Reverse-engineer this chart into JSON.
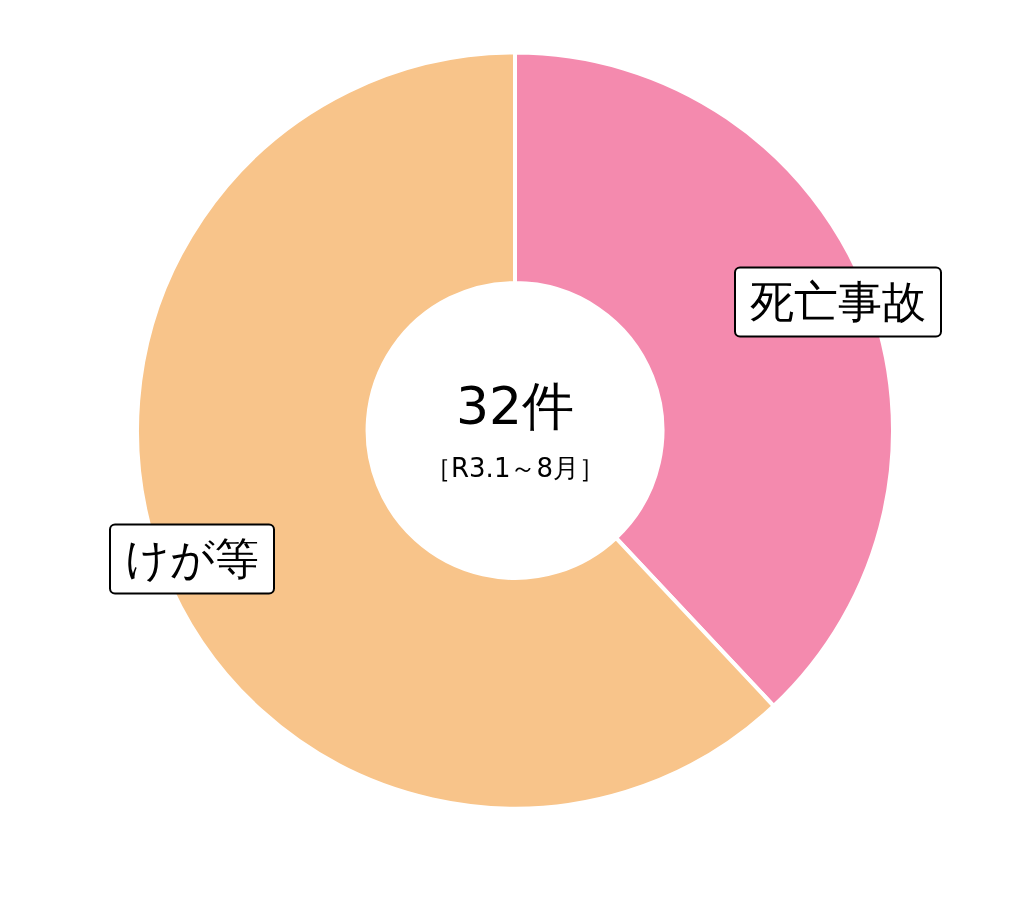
{
  "chart_data": {
    "type": "donut",
    "categories": [
      "死亡事故",
      "けが等"
    ],
    "values": [
      38,
      62
    ],
    "colors": [
      "#f48aae",
      "#f8c48a"
    ],
    "legend": false,
    "annotations": [
      "32件",
      "［R3.1～8月］"
    ]
  }
}
